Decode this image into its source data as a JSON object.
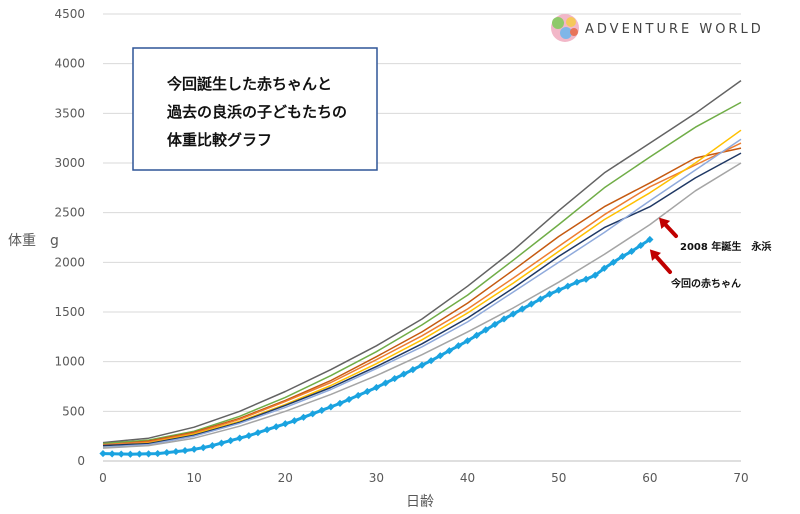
{
  "chart_data": {
    "type": "line",
    "title_lines": [
      "今回誕生した赤ちゃんと",
      "過去の良浜の子どもたちの",
      "体重比較グラフ"
    ],
    "xlabel": "日齢",
    "ylabel": "体重　g",
    "xlim": [
      0,
      70
    ],
    "ylim": [
      0,
      4500
    ],
    "x_ticks": [
      0,
      10,
      20,
      30,
      40,
      50,
      60,
      70
    ],
    "y_ticks": [
      0,
      500,
      1000,
      1500,
      2000,
      2500,
      3000,
      3500,
      4000,
      4500
    ],
    "grid": "horizontal",
    "series": [
      {
        "color": "#636363",
        "width": 1.5,
        "points": [
          [
            0,
            185
          ],
          [
            5,
            230
          ],
          [
            10,
            340
          ],
          [
            15,
            500
          ],
          [
            20,
            700
          ],
          [
            25,
            920
          ],
          [
            30,
            1160
          ],
          [
            35,
            1430
          ],
          [
            40,
            1760
          ],
          [
            45,
            2120
          ],
          [
            50,
            2520
          ],
          [
            55,
            2900
          ],
          [
            60,
            3200
          ],
          [
            65,
            3500
          ],
          [
            70,
            3830
          ]
        ]
      },
      {
        "color": "#70AD47",
        "width": 1.5,
        "points": [
          [
            0,
            175
          ],
          [
            5,
            210
          ],
          [
            10,
            300
          ],
          [
            15,
            450
          ],
          [
            20,
            640
          ],
          [
            25,
            860
          ],
          [
            30,
            1100
          ],
          [
            35,
            1370
          ],
          [
            40,
            1670
          ],
          [
            45,
            2020
          ],
          [
            50,
            2380
          ],
          [
            55,
            2750
          ],
          [
            60,
            3060
          ],
          [
            65,
            3360
          ],
          [
            70,
            3610
          ]
        ]
      },
      {
        "color": "#C55A11",
        "width": 1.5,
        "points": [
          [
            0,
            160
          ],
          [
            5,
            200
          ],
          [
            10,
            290
          ],
          [
            15,
            430
          ],
          [
            20,
            610
          ],
          [
            25,
            810
          ],
          [
            30,
            1050
          ],
          [
            35,
            1300
          ],
          [
            40,
            1590
          ],
          [
            45,
            1920
          ],
          [
            50,
            2260
          ],
          [
            55,
            2560
          ],
          [
            60,
            2800
          ],
          [
            65,
            3050
          ],
          [
            70,
            3150
          ]
        ]
      },
      {
        "color": "#ED7D31",
        "width": 1.5,
        "points": [
          [
            0,
            165
          ],
          [
            5,
            190
          ],
          [
            10,
            280
          ],
          [
            15,
            420
          ],
          [
            20,
            600
          ],
          [
            25,
            790
          ],
          [
            30,
            1020
          ],
          [
            35,
            1260
          ],
          [
            40,
            1530
          ],
          [
            45,
            1840
          ],
          [
            50,
            2160
          ],
          [
            55,
            2480
          ],
          [
            60,
            2760
          ],
          [
            65,
            2980
          ],
          [
            70,
            3200
          ]
        ]
      },
      {
        "color": "#FFC000",
        "width": 1.5,
        "points": [
          [
            0,
            150
          ],
          [
            5,
            180
          ],
          [
            10,
            270
          ],
          [
            15,
            400
          ],
          [
            20,
            570
          ],
          [
            25,
            760
          ],
          [
            30,
            980
          ],
          [
            35,
            1220
          ],
          [
            40,
            1490
          ],
          [
            45,
            1790
          ],
          [
            50,
            2110
          ],
          [
            55,
            2430
          ],
          [
            60,
            2700
          ],
          [
            65,
            3000
          ],
          [
            70,
            3330
          ]
        ]
      },
      {
        "color": "#1F3864",
        "width": 1.5,
        "points": [
          [
            0,
            155
          ],
          [
            5,
            175
          ],
          [
            10,
            260
          ],
          [
            15,
            390
          ],
          [
            20,
            560
          ],
          [
            25,
            740
          ],
          [
            30,
            950
          ],
          [
            35,
            1180
          ],
          [
            40,
            1440
          ],
          [
            45,
            1740
          ],
          [
            50,
            2060
          ],
          [
            55,
            2350
          ],
          [
            60,
            2560
          ],
          [
            65,
            2850
          ],
          [
            70,
            3100
          ]
        ]
      },
      {
        "color": "#8FAADC",
        "width": 1.5,
        "points": [
          [
            0,
            140
          ],
          [
            5,
            165
          ],
          [
            10,
            250
          ],
          [
            15,
            380
          ],
          [
            20,
            540
          ],
          [
            25,
            720
          ],
          [
            30,
            930
          ],
          [
            35,
            1150
          ],
          [
            40,
            1400
          ],
          [
            45,
            1700
          ],
          [
            50,
            2000
          ],
          [
            55,
            2300
          ],
          [
            60,
            2620
          ],
          [
            65,
            2930
          ],
          [
            70,
            3240
          ]
        ]
      },
      {
        "color": "#A5A5A5",
        "width": 1.5,
        "points": [
          [
            0,
            130
          ],
          [
            5,
            155
          ],
          [
            10,
            230
          ],
          [
            15,
            350
          ],
          [
            20,
            500
          ],
          [
            25,
            670
          ],
          [
            30,
            860
          ],
          [
            35,
            1070
          ],
          [
            40,
            1300
          ],
          [
            45,
            1540
          ],
          [
            50,
            1800
          ],
          [
            55,
            2080
          ],
          [
            60,
            2380
          ],
          [
            65,
            2720
          ],
          [
            70,
            3000
          ]
        ]
      },
      {
        "color": "#1AA3E0",
        "width": 3,
        "marker": true,
        "points": [
          [
            0,
            75
          ],
          [
            1,
            72
          ],
          [
            2,
            70
          ],
          [
            3,
            68
          ],
          [
            4,
            70
          ],
          [
            5,
            72
          ],
          [
            6,
            75
          ],
          [
            7,
            85
          ],
          [
            8,
            95
          ],
          [
            9,
            105
          ],
          [
            10,
            118
          ],
          [
            11,
            135
          ],
          [
            12,
            155
          ],
          [
            13,
            180
          ],
          [
            14,
            205
          ],
          [
            15,
            230
          ],
          [
            16,
            255
          ],
          [
            17,
            285
          ],
          [
            18,
            315
          ],
          [
            19,
            345
          ],
          [
            20,
            375
          ],
          [
            21,
            405
          ],
          [
            22,
            440
          ],
          [
            23,
            475
          ],
          [
            24,
            510
          ],
          [
            25,
            545
          ],
          [
            26,
            580
          ],
          [
            27,
            620
          ],
          [
            28,
            660
          ],
          [
            29,
            700
          ],
          [
            30,
            740
          ],
          [
            31,
            785
          ],
          [
            32,
            830
          ],
          [
            33,
            875
          ],
          [
            34,
            920
          ],
          [
            35,
            965
          ],
          [
            36,
            1010
          ],
          [
            37,
            1060
          ],
          [
            38,
            1110
          ],
          [
            39,
            1160
          ],
          [
            40,
            1210
          ],
          [
            41,
            1265
          ],
          [
            42,
            1320
          ],
          [
            43,
            1375
          ],
          [
            44,
            1430
          ],
          [
            45,
            1480
          ],
          [
            46,
            1530
          ],
          [
            47,
            1580
          ],
          [
            48,
            1630
          ],
          [
            49,
            1680
          ],
          [
            50,
            1720
          ],
          [
            51,
            1760
          ],
          [
            52,
            1800
          ],
          [
            53,
            1830
          ],
          [
            54,
            1870
          ],
          [
            55,
            1940
          ],
          [
            56,
            2000
          ],
          [
            57,
            2060
          ],
          [
            58,
            2110
          ],
          [
            59,
            2170
          ],
          [
            60,
            2230
          ]
        ]
      }
    ],
    "annotations": [
      {
        "text": "2008 年誕生　永浜",
        "arrow_tip": [
          61,
          2450
        ]
      },
      {
        "text": "今回の赤ちゃん",
        "arrow_tip": [
          60,
          2130
        ]
      }
    ]
  },
  "logo": {
    "text": "ADVENTURE WORLD"
  }
}
